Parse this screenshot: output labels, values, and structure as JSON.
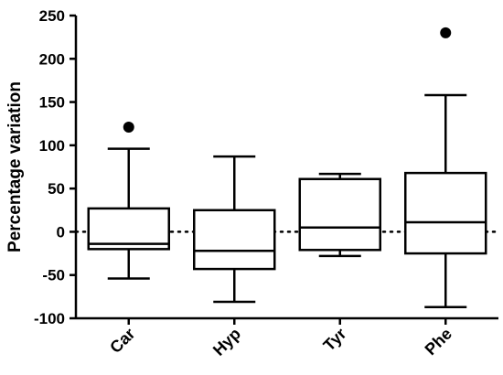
{
  "chart_data": {
    "type": "box",
    "title": "",
    "xlabel": "",
    "ylabel": "Percentage variation",
    "ylim": [
      -100,
      250
    ],
    "yticks": [
      -100,
      -50,
      0,
      50,
      100,
      150,
      200,
      250
    ],
    "reference_line": {
      "y": 0,
      "style": "dotted"
    },
    "categories": [
      "Car",
      "Hyp",
      "Tyr",
      "Phe"
    ],
    "boxes": [
      {
        "label": "Car",
        "whisker_low": -54,
        "q1": -20,
        "median": -14,
        "q3": 27,
        "whisker_high": 96,
        "outliers": [
          121
        ]
      },
      {
        "label": "Hyp",
        "whisker_low": -81,
        "q1": -43,
        "median": -22,
        "q3": 25,
        "whisker_high": 87,
        "outliers": []
      },
      {
        "label": "Tyr",
        "whisker_low": -28,
        "q1": -21,
        "median": 5,
        "q3": 61,
        "whisker_high": 67,
        "outliers": []
      },
      {
        "label": "Phe",
        "whisker_low": -87,
        "q1": -25,
        "median": 11,
        "q3": 68,
        "whisker_high": 158,
        "outliers": [
          230
        ]
      }
    ],
    "grid": false,
    "legend": "none",
    "colors": {
      "stroke": "#000000",
      "fill": "#ffffff",
      "outlier": "#000000"
    }
  }
}
